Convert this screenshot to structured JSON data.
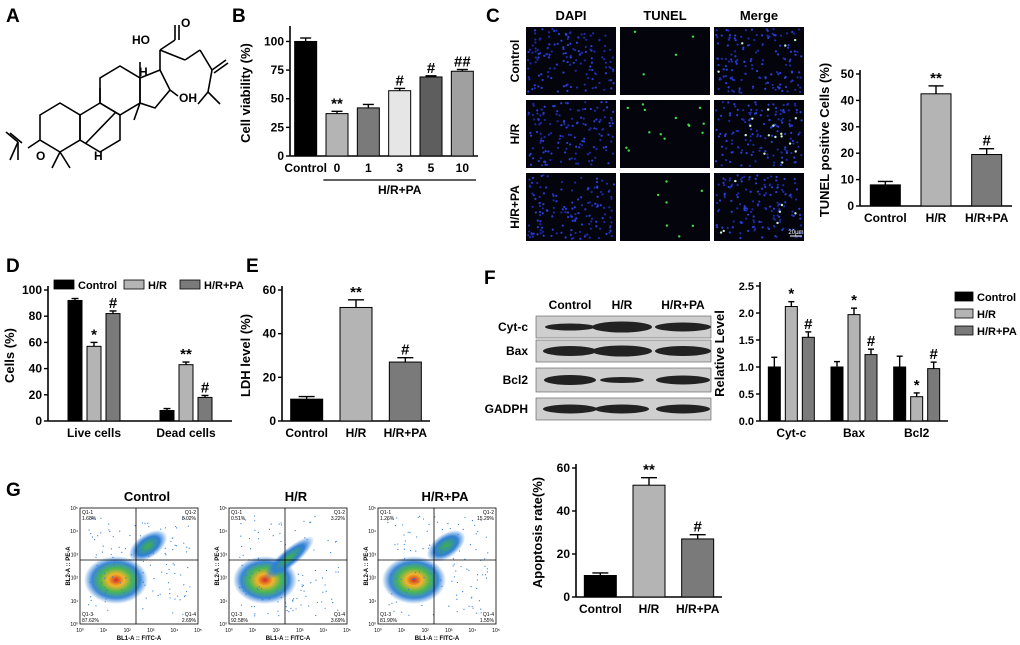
{
  "panels": {
    "A": "A",
    "B": "B",
    "C": "C",
    "D": "D",
    "E": "E",
    "F": "F",
    "G": "G"
  },
  "panel_a": {
    "label_ho": "HO",
    "label_o": "O",
    "label_oh": "OH",
    "label_h1": "H",
    "label_h2": "H",
    "label_h3": "H"
  },
  "panel_c": {
    "columns": [
      "DAPI",
      "TUNEL",
      "Merge"
    ],
    "rows": [
      "Control",
      "H/R",
      "H/R+PA"
    ],
    "scale_bar": "20μm"
  },
  "panel_f_blot": {
    "lanes": [
      "Control",
      "H/R",
      "H/R+PA"
    ],
    "proteins": [
      "Cyt-c",
      "Bax",
      "Bcl2",
      "GADPH"
    ]
  },
  "panel_g_flow": {
    "plots": [
      {
        "title": "Control",
        "q1": "Q1-1\n1.68%",
        "q2": "Q1-2\n8.02%",
        "q3": "Q1-3\n87.62%",
        "q4": "Q1-4\n2.69%"
      },
      {
        "title": "H/R",
        "q1": "Q1-1\n0.51%",
        "q2": "Q1-2\n3.22%",
        "q3": "Q1-3\n92.58%",
        "q4": "Q1-4\n3.69%"
      },
      {
        "title": "H/R+PA",
        "q1": "Q1-1\n1.26%",
        "q2": "Q1-2\n15.29%",
        "q3": "Q1-3\n81.90%",
        "q4": "Q1-4\n1.55%"
      }
    ],
    "xlabel": "BL1-A :: FITC-A",
    "ylabel": "BL2-A :: PE-A"
  },
  "chart_data": [
    {
      "id": "B",
      "type": "bar",
      "ylabel": "Cell viability (%)",
      "ylim": [
        0,
        110
      ],
      "yticks": [
        0,
        25,
        50,
        75,
        100
      ],
      "categories": [
        "Control",
        "0",
        "1",
        "3",
        "5",
        "10"
      ],
      "group_label": "H/R+PA",
      "values": [
        100,
        37,
        42,
        57,
        69,
        74
      ],
      "errors": [
        3,
        2,
        3,
        2,
        1,
        1.5
      ],
      "annotations": [
        "",
        "**",
        "",
        "#",
        "#",
        "##"
      ],
      "colors": [
        "#000000",
        "#b4b4b4",
        "#7a7a7a",
        "#e6e6e6",
        "#5e5e5e",
        "#a0a0a0"
      ]
    },
    {
      "id": "C",
      "type": "bar",
      "ylabel": "TUNEL positive Cells (%)",
      "ylim": [
        0,
        50
      ],
      "yticks": [
        0,
        10,
        20,
        30,
        40,
        50
      ],
      "categories": [
        "Control",
        "H/R",
        "H/R+PA"
      ],
      "values": [
        8,
        42.5,
        19.5
      ],
      "errors": [
        1.3,
        3,
        2.2
      ],
      "annotations": [
        "",
        "**",
        "#"
      ],
      "colors": [
        "#000000",
        "#b4b4b4",
        "#7a7a7a"
      ]
    },
    {
      "id": "D",
      "type": "bar",
      "ylabel": "Cells (%)",
      "ylim": [
        0,
        100
      ],
      "yticks": [
        0,
        20,
        40,
        60,
        80,
        100
      ],
      "categories": [
        "Live cells",
        "Dead cells"
      ],
      "series": [
        {
          "name": "Control",
          "values": [
            92,
            8
          ],
          "errors": [
            1.5,
            1.5
          ],
          "color": "#000000",
          "annotations": [
            "",
            ""
          ]
        },
        {
          "name": "H/R",
          "values": [
            57,
            43
          ],
          "errors": [
            3,
            2
          ],
          "color": "#b4b4b4",
          "annotations": [
            "*",
            "**"
          ]
        },
        {
          "name": "H/R+PA",
          "values": [
            82,
            18
          ],
          "errors": [
            2,
            1.5
          ],
          "color": "#7a7a7a",
          "annotations": [
            "#",
            "#"
          ]
        }
      ],
      "legend": "top"
    },
    {
      "id": "E",
      "type": "bar",
      "ylabel": "LDH level (%)",
      "ylim": [
        0,
        60
      ],
      "yticks": [
        0,
        20,
        40,
        60
      ],
      "categories": [
        "Control",
        "H/R",
        "H/R+PA"
      ],
      "values": [
        10,
        52,
        27
      ],
      "errors": [
        1.2,
        3.5,
        2
      ],
      "annotations": [
        "",
        "**",
        "#"
      ],
      "colors": [
        "#000000",
        "#b4b4b4",
        "#7a7a7a"
      ]
    },
    {
      "id": "F",
      "type": "bar",
      "ylabel": "Relative Level",
      "ylim": [
        0,
        2.5
      ],
      "yticks": [
        "0.0",
        "0.5",
        "1.0",
        "1.5",
        "2.0",
        "2.5"
      ],
      "categories": [
        "Cyt-c",
        "Bax",
        "Bcl2"
      ],
      "series": [
        {
          "name": "Control",
          "values": [
            1.0,
            1.0,
            1.0
          ],
          "errors": [
            0.18,
            0.1,
            0.2
          ],
          "color": "#000000",
          "annotations": [
            "",
            "",
            ""
          ]
        },
        {
          "name": "H/R",
          "values": [
            2.12,
            1.97,
            0.45
          ],
          "errors": [
            0.09,
            0.12,
            0.07
          ],
          "color": "#b4b4b4",
          "annotations": [
            "*",
            "*",
            "*"
          ]
        },
        {
          "name": "H/R+PA",
          "values": [
            1.55,
            1.23,
            0.97
          ],
          "errors": [
            0.1,
            0.1,
            0.12
          ],
          "color": "#7a7a7a",
          "annotations": [
            "#",
            "#",
            "#"
          ]
        }
      ],
      "legend": "right"
    },
    {
      "id": "G",
      "type": "bar",
      "ylabel": "Apoptosis rate(%)",
      "ylim": [
        0,
        60
      ],
      "yticks": [
        0,
        20,
        40,
        60
      ],
      "categories": [
        "Control",
        "H/R",
        "H/R+PA"
      ],
      "values": [
        10,
        52,
        27
      ],
      "errors": [
        1.2,
        3.5,
        2
      ],
      "annotations": [
        "",
        "**",
        "#"
      ],
      "colors": [
        "#000000",
        "#b4b4b4",
        "#7a7a7a"
      ]
    }
  ]
}
